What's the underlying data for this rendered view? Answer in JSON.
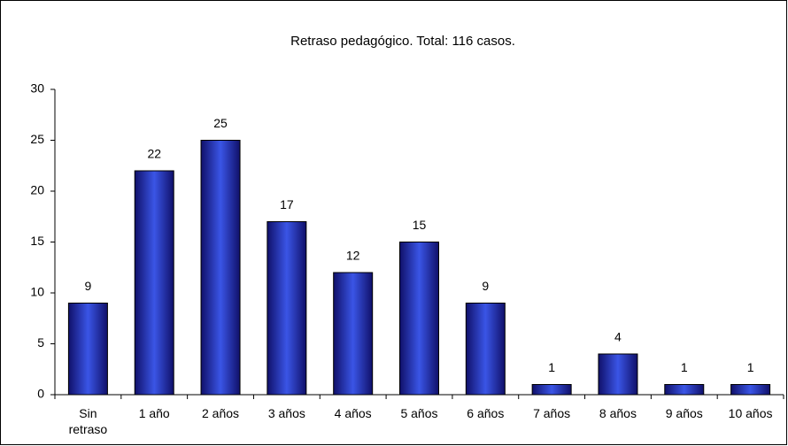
{
  "chart_data": {
    "type": "bar",
    "title": "Retraso pedagógico. Total: 116 casos.",
    "categories": [
      "Sin retraso",
      "1 año",
      "2 años",
      "3 años",
      "4 años",
      "5 años",
      "6 años",
      "7 años",
      "8 años",
      "9 años",
      "10 años"
    ],
    "values": [
      9,
      22,
      25,
      17,
      12,
      15,
      9,
      1,
      4,
      1,
      1
    ],
    "color": "#3a55e6",
    "ylim": [
      0,
      30
    ],
    "yticks": [
      0,
      5,
      10,
      15,
      20,
      25,
      30
    ],
    "grid": false
  }
}
